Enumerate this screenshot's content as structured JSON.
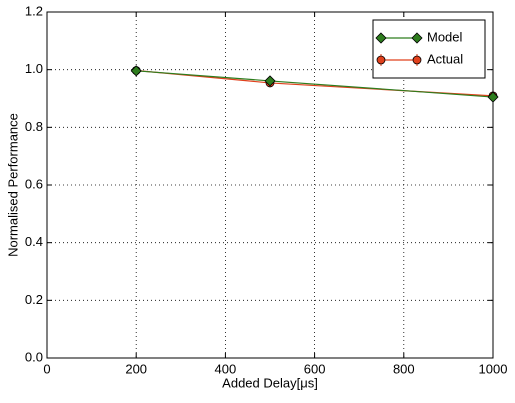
{
  "chart_data": {
    "type": "line",
    "xlabel": "Added Delay[μs]",
    "ylabel": "Normalised Performance",
    "x": [
      200,
      500,
      1000
    ],
    "series": [
      {
        "name": "Model",
        "color": "#2e7d1e",
        "marker": "diamond",
        "values": [
          0.996,
          0.961,
          0.905
        ]
      },
      {
        "name": "Actual",
        "color": "#e0401c",
        "marker": "circle",
        "values": [
          0.997,
          0.954,
          0.909
        ],
        "errors": [
          0.004,
          0.008,
          0.008
        ]
      }
    ],
    "xlim": [
      0,
      1000
    ],
    "xticks": [
      0,
      200,
      400,
      600,
      800,
      1000
    ],
    "ylim": [
      0,
      1.2
    ],
    "yticks": [
      {
        "value": 0,
        "label": "0.0"
      },
      0.2,
      0.4,
      0.6,
      0.8,
      {
        "value": 1,
        "label": "1.0"
      },
      1.2
    ],
    "grid": true,
    "legend": "upper right"
  }
}
